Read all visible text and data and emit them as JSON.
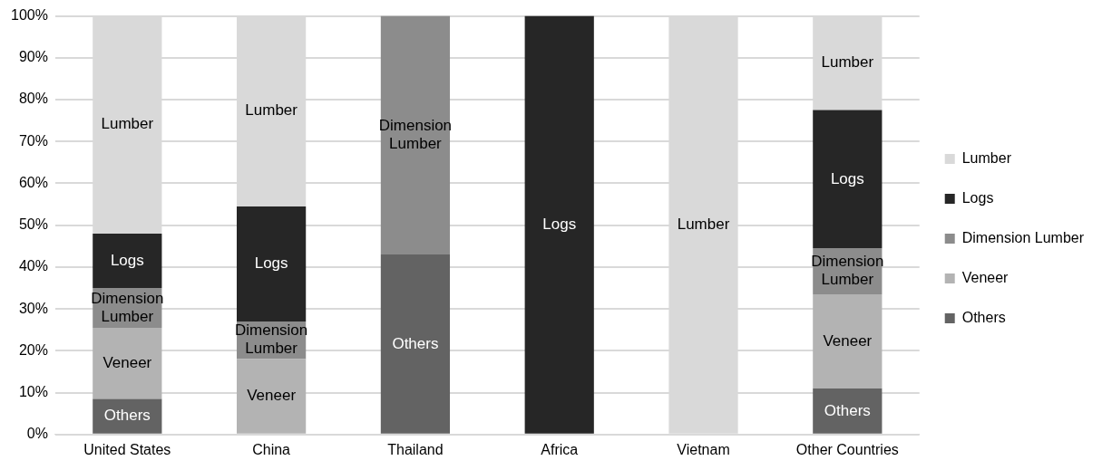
{
  "chart_data": {
    "type": "bar",
    "stacked": true,
    "categories": [
      "United States",
      "China",
      "Thailand",
      "Africa",
      "Vietnam",
      "Other Countries"
    ],
    "series": [
      {
        "name": "Others",
        "color": "#636363",
        "values": [
          8.5,
          0,
          43,
          0,
          0,
          11
        ]
      },
      {
        "name": "Veneer",
        "color": "#b3b3b3",
        "values": [
          17,
          18,
          0,
          0,
          0,
          22.5
        ]
      },
      {
        "name": "Dimension Lumber",
        "color": "#8c8c8c",
        "values": [
          9.5,
          9,
          57,
          0,
          0,
          11
        ]
      },
      {
        "name": "Logs",
        "color": "#262626",
        "values": [
          13,
          27.5,
          0,
          100,
          0,
          33
        ]
      },
      {
        "name": "Lumber",
        "color": "#d9d9d9",
        "values": [
          52,
          45.5,
          0,
          0,
          100,
          22.5
        ]
      }
    ],
    "ylim": [
      0,
      100
    ],
    "yticks": [
      {
        "value": 0,
        "label": "0%"
      },
      {
        "value": 10,
        "label": "10%"
      },
      {
        "value": 20,
        "label": "20%"
      },
      {
        "value": 30,
        "label": "30%"
      },
      {
        "value": 40,
        "label": "40%"
      },
      {
        "value": 50,
        "label": "50%"
      },
      {
        "value": 60,
        "label": "60%"
      },
      {
        "value": 70,
        "label": "70%"
      },
      {
        "value": 80,
        "label": "80%"
      },
      {
        "value": 90,
        "label": "90%"
      },
      {
        "value": 100,
        "label": "100%"
      }
    ],
    "grid": "y",
    "legend": "right"
  }
}
